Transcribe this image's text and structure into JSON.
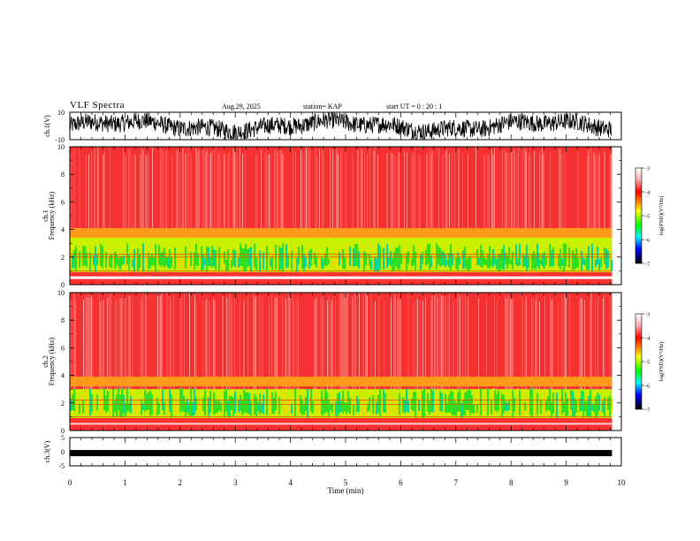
{
  "header": {
    "title": "VLF Spectra",
    "date": "Aug.29, 2025",
    "station": "station= KAP",
    "start_ut": "start UT =   0 : 20 : 1"
  },
  "chart_data": [
    {
      "id": "ch1-waveform",
      "type": "line",
      "ylabel": "ch.1(V)",
      "ylim": [
        -10,
        10
      ],
      "yticks": [
        "10",
        "-10"
      ],
      "xlim": [
        0,
        10
      ],
      "data_end_min": 9.83,
      "description_level": "noisy waveform oscillating mostly between -5 and 8 V"
    },
    {
      "id": "ch1-spectrogram",
      "type": "heatmap",
      "ylabel": "ch.1\nFrequency (kHz)",
      "ylim": [
        0,
        10
      ],
      "yticks": [
        "0",
        "2",
        "4",
        "6",
        "8",
        "10"
      ],
      "xlim": [
        0,
        10
      ],
      "colorbar": {
        "label": "log(PSD)(V²/Hz)",
        "range": [
          -7,
          -3
        ],
        "ticks": [
          "-3",
          "-4",
          "-5",
          "-6",
          "-7"
        ]
      }
    },
    {
      "id": "ch2-spectrogram",
      "type": "heatmap",
      "ylabel": "ch.2\nFrequency (kHz)",
      "ylim": [
        0,
        10
      ],
      "yticks": [
        "0",
        "2",
        "4",
        "6",
        "8",
        "10"
      ],
      "xlim": [
        0,
        10
      ],
      "colorbar": {
        "label": "log(PSD)(V²/Hz)",
        "range": [
          -7,
          -3
        ],
        "ticks": [
          "-3",
          "-4",
          "-5",
          "-6",
          "-7"
        ]
      }
    },
    {
      "id": "ch3-waveform",
      "type": "line",
      "ylabel": "ch.3(V)",
      "ylim": [
        -5,
        5
      ],
      "yticks": [
        "5",
        "0",
        "-5"
      ],
      "xlim": [
        0,
        10
      ],
      "xlabel": "Time (min)",
      "xticks": [
        "0",
        "1",
        "2",
        "3",
        "4",
        "5",
        "6",
        "7",
        "8",
        "9",
        "10"
      ],
      "level_v": -0.5
    }
  ]
}
